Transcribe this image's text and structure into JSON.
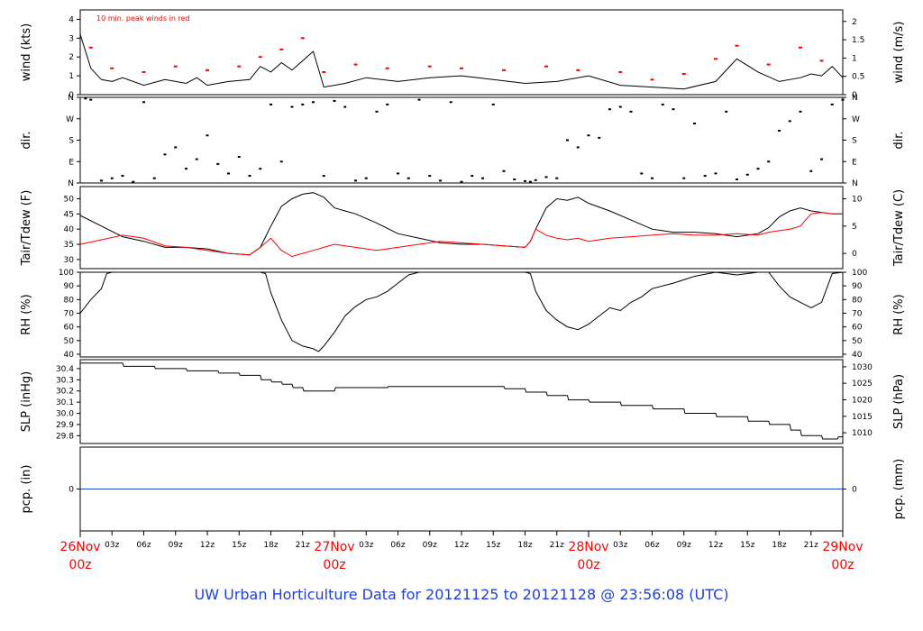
{
  "footer": {
    "prefix": "UW Urban Horticulture Data for",
    "start": "20121125",
    "to_word": "to",
    "end": "20121128",
    "at_word": "@",
    "time": "23:56:08",
    "zone": "(UTC)"
  },
  "chart_data": [
    {
      "id": "wind",
      "type": "line",
      "ylabel_left": "wind (kts)",
      "ylabel_right": "wind (m/s)",
      "ylim": [
        0,
        4.5
      ],
      "yticks_left": [
        "0",
        "1",
        "2",
        "3",
        "4"
      ],
      "yticks_left_values": [
        0,
        1,
        2,
        3,
        4
      ],
      "yticks_right": [
        "0",
        "0.5",
        "1",
        "1.5",
        "2"
      ],
      "yticks_right_values": [
        0,
        0.972,
        1.944,
        2.916,
        3.888
      ],
      "annotation": "10 min. peak winds in red",
      "series": [
        {
          "color": "#000000",
          "x": [
            0,
            1,
            2,
            3,
            4,
            6,
            8,
            10,
            11,
            12,
            14,
            16,
            17,
            18,
            19,
            20,
            21,
            22,
            23,
            24,
            25,
            27,
            30,
            33,
            36,
            39,
            42,
            45,
            48,
            51,
            54,
            57,
            60,
            62,
            64,
            66,
            68,
            69,
            70,
            71,
            72
          ],
          "values": [
            3.2,
            1.4,
            0.8,
            0.7,
            0.9,
            0.5,
            0.8,
            0.6,
            0.9,
            0.5,
            0.7,
            0.8,
            1.5,
            1.2,
            1.7,
            1.3,
            1.8,
            2.3,
            0.4,
            0.5,
            0.6,
            0.9,
            0.7,
            0.9,
            1.0,
            0.8,
            0.6,
            0.7,
            1.0,
            0.5,
            0.4,
            0.3,
            0.7,
            1.9,
            1.2,
            0.7,
            0.9,
            1.1,
            1.0,
            1.5,
            0.9
          ]
        },
        {
          "color": "#ff0000",
          "x": [
            1,
            3,
            6,
            9,
            12,
            15,
            17,
            19,
            21,
            23,
            26,
            29,
            33,
            36,
            40,
            44,
            47,
            51,
            54,
            57,
            60,
            62,
            65,
            68,
            70
          ],
          "values": [
            2.5,
            1.4,
            1.2,
            1.5,
            1.3,
            1.5,
            2.0,
            2.4,
            3.0,
            1.2,
            1.6,
            1.4,
            1.5,
            1.4,
            1.3,
            1.5,
            1.3,
            1.2,
            0.8,
            1.1,
            1.9,
            2.6,
            1.6,
            2.5,
            1.8
          ]
        }
      ]
    },
    {
      "id": "dir",
      "type": "scatter",
      "ylabel_left": "dir.",
      "ylabel_right": "dir.",
      "ylim": [
        0,
        360
      ],
      "yticks_left": [
        "N",
        "E",
        "S",
        "W",
        "N"
      ],
      "yticks_left_values": [
        0,
        90,
        180,
        270,
        360
      ],
      "yticks_right": [
        "N",
        "E",
        "S",
        "W",
        "N"
      ],
      "yticks_right_values": [
        0,
        90,
        180,
        270,
        360
      ],
      "series": [
        {
          "color": "#000000",
          "x": [
            0.5,
            1,
            2,
            3,
            4,
            5,
            6,
            7,
            8,
            9,
            10,
            11,
            12,
            13,
            14,
            15,
            16,
            17,
            18,
            19,
            20,
            21,
            22,
            23,
            24,
            25,
            26,
            27,
            28,
            29,
            30,
            31,
            32,
            33,
            34,
            35,
            36,
            37,
            38,
            39,
            40,
            41,
            42,
            42.5,
            43,
            44,
            45,
            46,
            47,
            48,
            49,
            50,
            51,
            52,
            53,
            54,
            55,
            56,
            57,
            58,
            59,
            60,
            61,
            62,
            63,
            64,
            65,
            66,
            67,
            68,
            69,
            70,
            71,
            72
          ],
          "values": [
            355,
            350,
            10,
            20,
            30,
            5,
            340,
            20,
            120,
            150,
            60,
            100,
            200,
            80,
            40,
            110,
            30,
            60,
            330,
            90,
            320,
            330,
            340,
            30,
            345,
            320,
            10,
            20,
            300,
            330,
            40,
            20,
            350,
            30,
            10,
            340,
            5,
            30,
            20,
            330,
            50,
            15,
            8,
            5,
            12,
            25,
            20,
            180,
            150,
            200,
            190,
            310,
            320,
            300,
            40,
            20,
            330,
            310,
            20,
            250,
            30,
            40,
            300,
            15,
            35,
            60,
            90,
            220,
            260,
            300,
            50,
            100,
            330,
            350
          ]
        }
      ]
    },
    {
      "id": "temp",
      "type": "line",
      "ylabel_left": "Tair/Tdew (F)",
      "ylabel_right": "Tair/Tdew (C)",
      "ylim": [
        27,
        54
      ],
      "yticks_left": [
        "30",
        "35",
        "40",
        "45",
        "50"
      ],
      "yticks_left_values": [
        30,
        35,
        40,
        45,
        50
      ],
      "yticks_right": [
        "0",
        "5",
        "10"
      ],
      "yticks_right_values": [
        32,
        41,
        50
      ],
      "series": [
        {
          "color": "#000000",
          "x": [
            0,
            2,
            4,
            6,
            8,
            10,
            12,
            14,
            16,
            17,
            18,
            19,
            20,
            21,
            22,
            23,
            24,
            26,
            28,
            30,
            32,
            34,
            36,
            38,
            40,
            42,
            42.5,
            43,
            44,
            45,
            46,
            47,
            48,
            50,
            52,
            54,
            56,
            58,
            60,
            62,
            64,
            65,
            66,
            67,
            68,
            69,
            70,
            71,
            72
          ],
          "values": [
            44.5,
            41,
            37.5,
            36,
            34,
            34,
            33.5,
            32,
            31.5,
            34,
            41,
            47.5,
            50,
            51.5,
            52,
            50.5,
            47,
            45,
            42,
            38.5,
            37,
            35.5,
            35,
            35,
            34.5,
            34,
            36,
            40,
            47,
            50,
            49.5,
            50.5,
            48.5,
            46,
            43,
            40,
            39,
            39,
            38.5,
            37.5,
            38.5,
            40.5,
            44,
            46,
            47,
            46,
            45.5,
            45,
            45
          ]
        },
        {
          "color": "#ff0000",
          "x": [
            0,
            2,
            4,
            6,
            8,
            10,
            12,
            14,
            16,
            17,
            18,
            19,
            20,
            21,
            22,
            23,
            24,
            26,
            28,
            30,
            32,
            34,
            36,
            38,
            40,
            42,
            42.5,
            43,
            44,
            45,
            46,
            47,
            48,
            50,
            52,
            54,
            56,
            58,
            60,
            62,
            64,
            65,
            66,
            67,
            68,
            69,
            70,
            71,
            72
          ],
          "values": [
            35,
            36.5,
            38,
            37,
            34.5,
            34,
            33,
            32,
            31.5,
            34,
            37,
            33,
            31,
            32,
            33,
            34,
            35,
            34,
            33,
            34,
            35,
            36,
            35.5,
            35,
            34.5,
            34,
            36,
            40,
            38,
            37,
            36.5,
            37,
            36,
            37,
            37.5,
            38,
            38.5,
            38,
            38,
            38.5,
            38,
            39,
            39.5,
            40,
            41,
            45,
            45.5,
            45,
            45
          ]
        }
      ]
    },
    {
      "id": "rh",
      "type": "line",
      "ylabel_left": "RH (%)",
      "ylabel_right": "RH (%)",
      "ylim": [
        38,
        100
      ],
      "yticks_left": [
        "40",
        "50",
        "60",
        "70",
        "80",
        "90",
        "100"
      ],
      "yticks_left_values": [
        40,
        50,
        60,
        70,
        80,
        90,
        100
      ],
      "yticks_right": [
        "40",
        "50",
        "60",
        "70",
        "80",
        "90",
        "100"
      ],
      "yticks_right_values": [
        40,
        50,
        60,
        70,
        80,
        90,
        100
      ],
      "series": [
        {
          "color": "#000000",
          "x": [
            0,
            1,
            2,
            2.5,
            3,
            5,
            10,
            15,
            17,
            17.5,
            18,
            19,
            20,
            21,
            22,
            22.5,
            23,
            24,
            25,
            26,
            27,
            28,
            29,
            30,
            31,
            32,
            34,
            36,
            38,
            40,
            42,
            42.5,
            43,
            44,
            45,
            46,
            47,
            48,
            49,
            50,
            51,
            52,
            53,
            54,
            56,
            58,
            60,
            62,
            64,
            65,
            66,
            67,
            68,
            69,
            70,
            71,
            72
          ],
          "values": [
            70,
            80,
            88,
            99,
            100,
            100,
            100,
            100,
            100,
            99,
            85,
            65,
            50,
            46,
            44,
            42,
            46,
            56,
            68,
            75,
            80,
            82,
            86,
            92,
            98,
            100,
            100,
            100,
            100,
            100,
            100,
            99,
            86,
            72,
            65,
            60,
            58,
            62,
            68,
            74,
            72,
            78,
            82,
            88,
            92,
            97,
            100,
            98,
            100,
            100,
            90,
            82,
            78,
            74,
            78,
            99,
            100
          ]
        }
      ]
    },
    {
      "id": "slp",
      "type": "line",
      "ylabel_left": "SLP (inHg)",
      "ylabel_right": "SLP (hPa)",
      "ylim": [
        29.73,
        30.48
      ],
      "yticks_left": [
        "29.8",
        "29.9",
        "30.0",
        "30.1",
        "30.2",
        "30.3",
        "30.4"
      ],
      "yticks_left_values": [
        29.8,
        29.9,
        30.0,
        30.1,
        30.2,
        30.3,
        30.4
      ],
      "yticks_right": [
        "1010",
        "1015",
        "1020",
        "1025",
        "1030"
      ],
      "yticks_right_values": [
        29.826,
        29.973,
        30.121,
        30.269,
        30.416
      ],
      "series": [
        {
          "color": "#000000",
          "x": [
            0,
            4,
            4.1,
            7,
            7.1,
            10,
            10.1,
            13,
            13.1,
            15,
            15.1,
            17,
            17.1,
            18,
            18.1,
            19,
            19.1,
            20,
            20.1,
            21,
            21.1,
            24,
            24.1,
            29,
            29.1,
            40,
            40.1,
            42,
            42.1,
            44,
            44.1,
            46,
            46.1,
            48,
            48.1,
            51,
            51.1,
            54,
            54.1,
            57,
            57.1,
            60,
            60.1,
            63,
            63.1,
            65,
            65.1,
            67,
            67.1,
            68,
            68.1,
            70,
            70.1,
            71.5,
            71.6,
            72
          ],
          "values": [
            30.45,
            30.45,
            30.42,
            30.42,
            30.4,
            30.4,
            30.38,
            30.38,
            30.36,
            30.36,
            30.34,
            30.34,
            30.3,
            30.3,
            30.28,
            30.28,
            30.26,
            30.26,
            30.23,
            30.23,
            30.2,
            30.2,
            30.23,
            30.23,
            30.24,
            30.24,
            30.22,
            30.22,
            30.19,
            30.19,
            30.16,
            30.16,
            30.12,
            30.12,
            30.1,
            30.1,
            30.07,
            30.07,
            30.04,
            30.04,
            30.0,
            30.0,
            29.97,
            29.97,
            29.93,
            29.93,
            29.9,
            29.9,
            29.85,
            29.85,
            29.8,
            29.8,
            29.77,
            29.77,
            29.79,
            29.79
          ]
        }
      ]
    },
    {
      "id": "pcp",
      "type": "line",
      "ylabel_left": "pcp. (in)",
      "ylabel_right": "pcp. (mm)",
      "ylim": [
        -1,
        1
      ],
      "yticks_left": [
        "0"
      ],
      "yticks_left_values": [
        0
      ],
      "yticks_right": [
        "0"
      ],
      "yticks_right_values": [
        0
      ],
      "series": [
        {
          "color": "#1f3fd6",
          "x": [
            0,
            72
          ],
          "values": [
            0,
            0
          ]
        }
      ]
    }
  ],
  "xaxis": {
    "range_hours": [
      0,
      72
    ],
    "minor_labels": [
      {
        "h": 3,
        "label": "03z"
      },
      {
        "h": 6,
        "label": "06z"
      },
      {
        "h": 9,
        "label": "09z"
      },
      {
        "h": 12,
        "label": "12z"
      },
      {
        "h": 15,
        "label": "15z"
      },
      {
        "h": 18,
        "label": "18z"
      },
      {
        "h": 21,
        "label": "21z"
      },
      {
        "h": 27,
        "label": "03z"
      },
      {
        "h": 30,
        "label": "06z"
      },
      {
        "h": 33,
        "label": "09z"
      },
      {
        "h": 36,
        "label": "12z"
      },
      {
        "h": 39,
        "label": "15z"
      },
      {
        "h": 42,
        "label": "18z"
      },
      {
        "h": 45,
        "label": "21z"
      },
      {
        "h": 51,
        "label": "03z"
      },
      {
        "h": 54,
        "label": "06z"
      },
      {
        "h": 57,
        "label": "09z"
      },
      {
        "h": 60,
        "label": "12z"
      },
      {
        "h": 63,
        "label": "15z"
      },
      {
        "h": 66,
        "label": "18z"
      },
      {
        "h": 69,
        "label": "21z"
      }
    ],
    "day_labels": [
      {
        "h": 0,
        "date": "26Nov",
        "time": "00z"
      },
      {
        "h": 24,
        "date": "27Nov",
        "time": "00z"
      },
      {
        "h": 48,
        "date": "28Nov",
        "time": "00z"
      },
      {
        "h": 72,
        "date": "29Nov",
        "time": "00z"
      }
    ],
    "day_color": "#ff0000"
  }
}
